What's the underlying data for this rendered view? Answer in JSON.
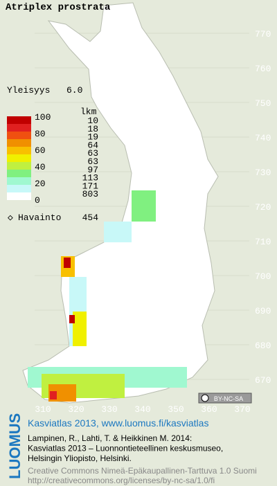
{
  "title": "Atriplex prostrata",
  "frequency": {
    "label": "Yleisyys",
    "value": "6.0"
  },
  "legend": {
    "scale": [
      100,
      80,
      60,
      40,
      20,
      0
    ],
    "count_header": "lkm",
    "counts": [
      10,
      18,
      19,
      64,
      63,
      63,
      97,
      113,
      171,
      803
    ],
    "observations": "Havainto",
    "observation_count": 454
  },
  "grid": {
    "y_labels": [
      770,
      760,
      750,
      740,
      730,
      720,
      710,
      700,
      690,
      680,
      670
    ],
    "x_labels": [
      310,
      320,
      330,
      340,
      350,
      360,
      370
    ]
  },
  "license_badge": "BY-NC-SA",
  "footer": {
    "logo": "LUOMUS",
    "heading": "Kasviatlas 2013, www.luomus.fi/kasviatlas",
    "lines": [
      "Lampinen, R., Lahti, T. & Heikkinen M. 2014:",
      "Kasviatlas 2013 – Luonnontieteellinen keskusmuseo,",
      "Helsingin Yliopisto, Helsinki."
    ],
    "license_lines": [
      "Creative Commons Nimeä-Epäkaupallinen-Tarttuva 1.0 Suomi",
      "http://creativecommons.org/licenses/by-nc-sa/1.0/fi"
    ]
  }
}
